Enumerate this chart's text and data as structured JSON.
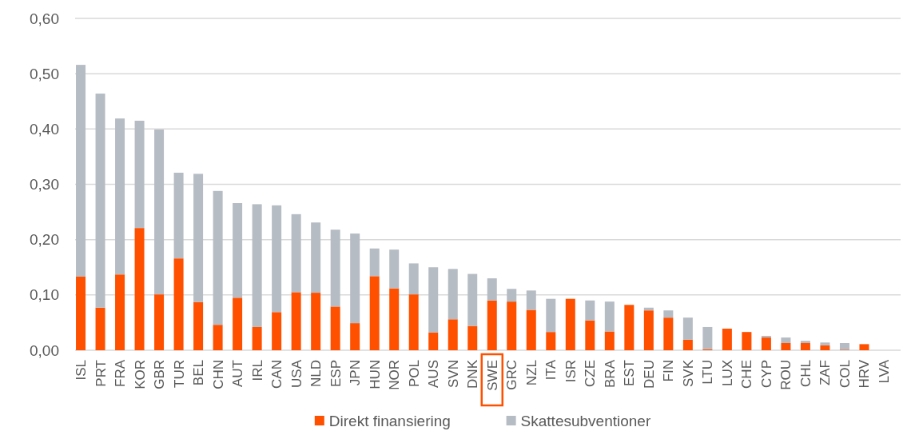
{
  "chart_data": {
    "type": "bar",
    "stacked": true,
    "categories": [
      "ISL",
      "PRT",
      "FRA",
      "KOR",
      "GBR",
      "TUR",
      "BEL",
      "CHN",
      "AUT",
      "IRL",
      "CAN",
      "USA",
      "NLD",
      "ESP",
      "JPN",
      "HUN",
      "NOR",
      "POL",
      "AUS",
      "SVN",
      "DNK",
      "SWE",
      "GRC",
      "NZL",
      "ITA",
      "ISR",
      "CZE",
      "BRA",
      "EST",
      "DEU",
      "FIN",
      "SVK",
      "LTU",
      "LUX",
      "CHE",
      "CYP",
      "ROU",
      "CHL",
      "ZAF",
      "COL",
      "HRV",
      "LVA"
    ],
    "series": [
      {
        "name": "Direkt finansiering",
        "color": "#ff5000",
        "values": [
          0.133,
          0.077,
          0.137,
          0.221,
          0.101,
          0.166,
          0.087,
          0.046,
          0.095,
          0.042,
          0.069,
          0.105,
          0.104,
          0.079,
          0.049,
          0.134,
          0.112,
          0.101,
          0.032,
          0.056,
          0.044,
          0.09,
          0.088,
          0.073,
          0.033,
          0.093,
          0.054,
          0.034,
          0.082,
          0.072,
          0.059,
          0.019,
          0.002,
          0.039,
          0.033,
          0.023,
          0.013,
          0.013,
          0.009,
          0.001,
          0.011,
          null
        ]
      },
      {
        "name": "Skattesubventioner",
        "color": "#b6bcc4",
        "values": [
          0.383,
          0.387,
          0.282,
          0.194,
          0.298,
          0.155,
          0.232,
          0.242,
          0.171,
          0.222,
          0.193,
          0.141,
          0.127,
          0.139,
          0.162,
          0.05,
          0.07,
          0.056,
          0.118,
          0.091,
          0.094,
          0.04,
          0.023,
          0.035,
          0.06,
          0,
          0.036,
          0.054,
          0,
          0.005,
          0.013,
          0.04,
          0.04,
          0,
          0,
          0.003,
          0.01,
          0.004,
          0.005,
          0.012,
          0,
          null
        ]
      }
    ],
    "ylim": [
      0,
      0.6
    ],
    "yticks": [
      {
        "value": 0,
        "label": "0,00"
      },
      {
        "value": 0.1,
        "label": "0,10"
      },
      {
        "value": 0.2,
        "label": "0,20"
      },
      {
        "value": 0.3,
        "label": "0,30"
      },
      {
        "value": 0.4,
        "label": "0,40"
      },
      {
        "value": 0.5,
        "label": "0,50"
      },
      {
        "value": 0.6,
        "label": "0,60"
      }
    ],
    "grid": "y",
    "legend": "bottom"
  }
}
